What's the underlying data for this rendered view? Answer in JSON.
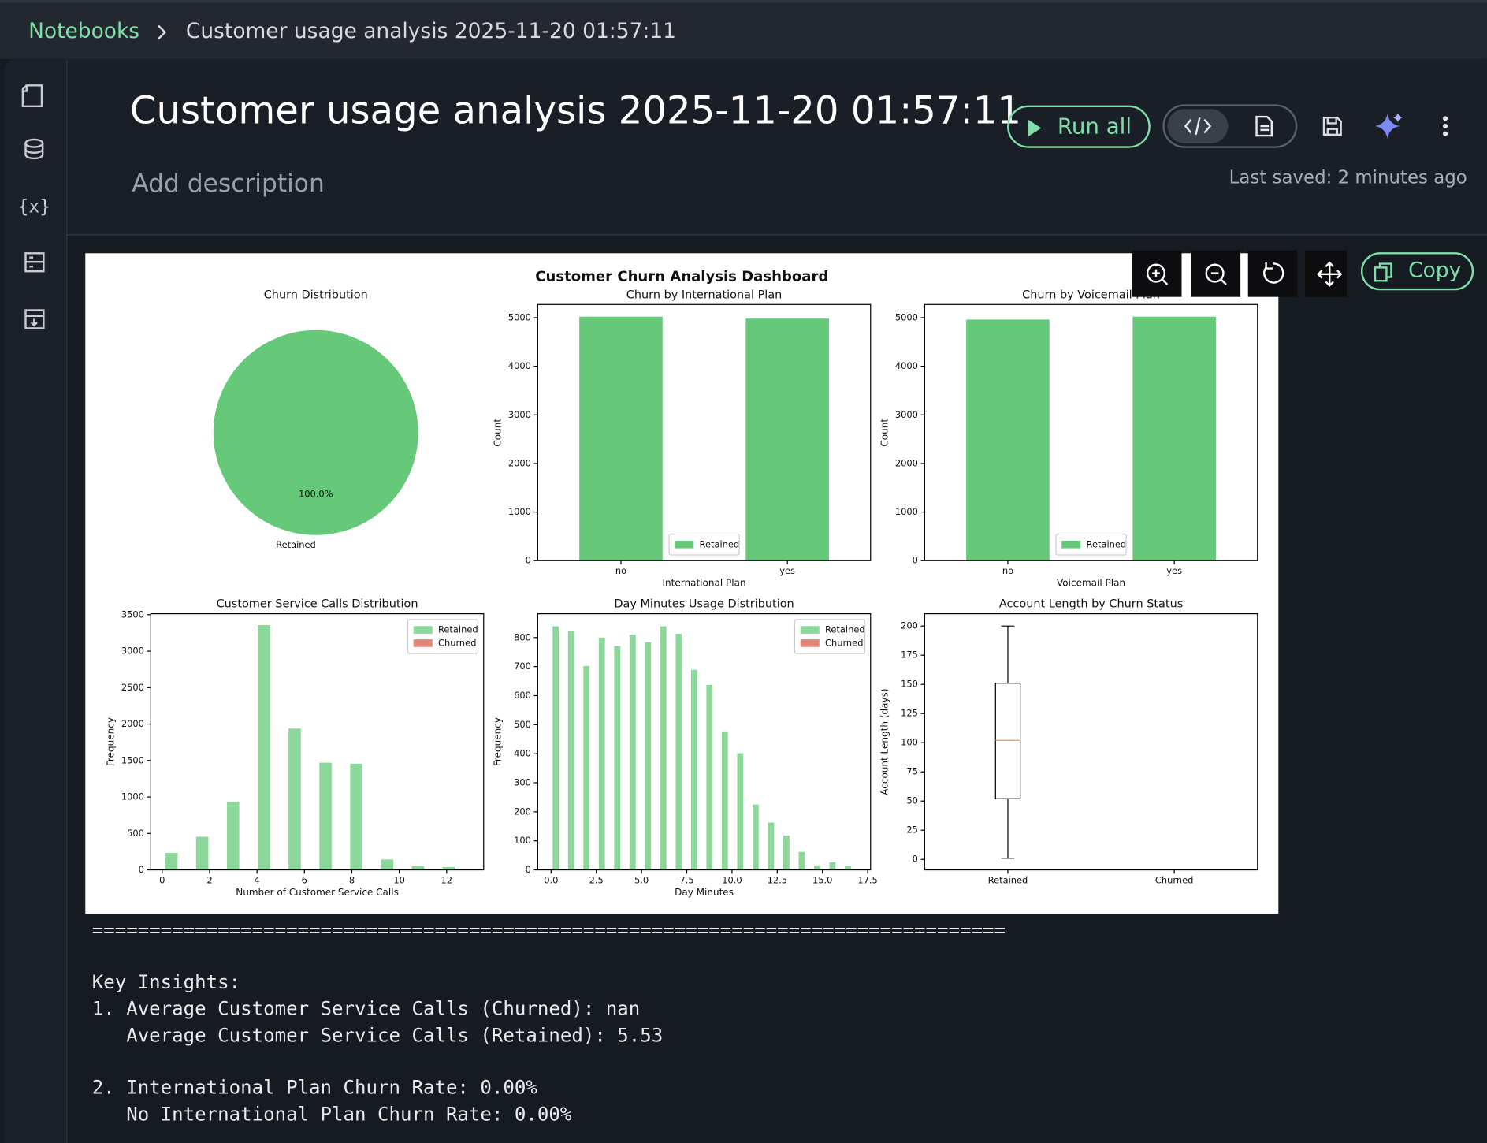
{
  "breadcrumb": {
    "root": "Notebooks",
    "current": "Customer usage analysis 2025-11-20 01:57:11"
  },
  "header": {
    "title": "Customer usage analysis 2025-11-20 01:57:11",
    "description": "Add description",
    "run_all": "Run all",
    "last_saved": "Last saved: 2 minutes ago"
  },
  "image_toolbar": {
    "copy": "Copy"
  },
  "dashboard_title": "Customer Churn Analysis Dashboard",
  "chart_data": [
    {
      "type": "pie",
      "title": "Churn Distribution",
      "categories": [
        "Retained"
      ],
      "values": [
        100
      ],
      "value_labels": [
        "100.0%"
      ],
      "colors": [
        "#66c97a"
      ]
    },
    {
      "type": "bar",
      "title": "Churn by International Plan",
      "x_label": "International Plan",
      "y_label": "Count",
      "categories": [
        "no",
        "yes"
      ],
      "series": [
        {
          "name": "Retained",
          "color": "#66c97a",
          "values": [
            5020,
            4980
          ]
        }
      ],
      "ylim": [
        0,
        5270
      ],
      "yticks": [
        0,
        1000,
        2000,
        3000,
        4000,
        5000
      ],
      "legend": "lower center"
    },
    {
      "type": "bar",
      "title": "Churn by Voicemail Plan",
      "x_label": "Voicemail Plan",
      "y_label": "Count",
      "categories": [
        "no",
        "yes"
      ],
      "series": [
        {
          "name": "Retained",
          "color": "#66c97a",
          "values": [
            4960,
            5020
          ]
        }
      ],
      "ylim": [
        0,
        5270
      ],
      "yticks": [
        0,
        1000,
        2000,
        3000,
        4000,
        5000
      ],
      "legend": "lower center"
    },
    {
      "type": "histogram",
      "title": "Customer Service Calls Distribution",
      "x_label": "Number of Customer Service Calls",
      "y_label": "Frequency",
      "bins": [
        0,
        1.3,
        2.6,
        3.9,
        5.2,
        6.5,
        7.8,
        9.1,
        10.4,
        11.7,
        13
      ],
      "series": [
        {
          "name": "Retained",
          "color": "#8cd89a",
          "values": [
            234,
            455,
            937,
            3357,
            1939,
            1470,
            1457,
            143,
            52,
            39
          ]
        },
        {
          "name": "Churned",
          "color": "#e08579",
          "values": [
            0,
            0,
            0,
            0,
            0,
            0,
            0,
            0,
            0,
            0
          ]
        }
      ],
      "xlim": [
        -0.48,
        13.56
      ],
      "ylim": [
        0,
        3513
      ],
      "xticks": [
        0,
        2,
        4,
        6,
        8,
        10,
        12
      ],
      "yticks": [
        0,
        500,
        1000,
        1500,
        2000,
        2500,
        3000,
        3500
      ],
      "legend": "upper right"
    },
    {
      "type": "histogram",
      "title": "Day Minutes Usage Distribution",
      "x_label": "Day Minutes",
      "y_label": "Frequency",
      "bins": [
        0,
        0.85,
        1.7,
        2.55,
        3.4,
        4.25,
        5.1,
        5.95,
        6.8,
        7.65,
        8.5,
        9.35,
        10.2,
        11.05,
        11.9,
        12.75,
        13.6,
        14.45,
        15.3,
        16.15,
        17
      ],
      "series": [
        {
          "name": "Retained",
          "color": "#8cd89a",
          "values": [
            839,
            823,
            702,
            800,
            771,
            810,
            784,
            839,
            813,
            689,
            637,
            477,
            402,
            225,
            163,
            118,
            62,
            16,
            26,
            13
          ]
        },
        {
          "name": "Churned",
          "color": "#e08579",
          "values": [
            0,
            0,
            0,
            0,
            0,
            0,
            0,
            0,
            0,
            0,
            0,
            0,
            0,
            0,
            0,
            0,
            0,
            0,
            0,
            0
          ]
        }
      ],
      "xlim": [
        -0.74,
        17.66
      ],
      "ylim": [
        0,
        882
      ],
      "xticks": [
        {
          "value": 0,
          "label": "0.0"
        },
        2.5,
        {
          "value": 5,
          "label": "5.0"
        },
        7.5,
        {
          "value": 10,
          "label": "10.0"
        },
        12.5,
        {
          "value": 15,
          "label": "15.0"
        },
        17.5
      ],
      "yticks": [
        0,
        100,
        200,
        300,
        400,
        500,
        600,
        700,
        800
      ],
      "legend": "upper right"
    },
    {
      "type": "box",
      "title": "Account Length by Churn Status",
      "y_label": "Account Length (days)",
      "categories": [
        "Retained",
        "Churned"
      ],
      "stats": [
        {
          "min": 1,
          "q1": 52,
          "median": 102,
          "q3": 151,
          "max": 200
        },
        null
      ],
      "box_color": "#000000",
      "median_color": "#e8935a",
      "ylim": [
        -9,
        210.5
      ],
      "yticks": [
        0,
        25,
        50,
        75,
        100,
        125,
        150,
        175,
        200
      ]
    }
  ],
  "output": {
    "separator": "================================================================================",
    "lines": [
      "Key Insights:",
      "1. Average Customer Service Calls (Churned): nan",
      "   Average Customer Service Calls (Retained): 5.53",
      "2. International Plan Churn Rate: 0.00%",
      "   No International Plan Churn Rate: 0.00%"
    ]
  }
}
